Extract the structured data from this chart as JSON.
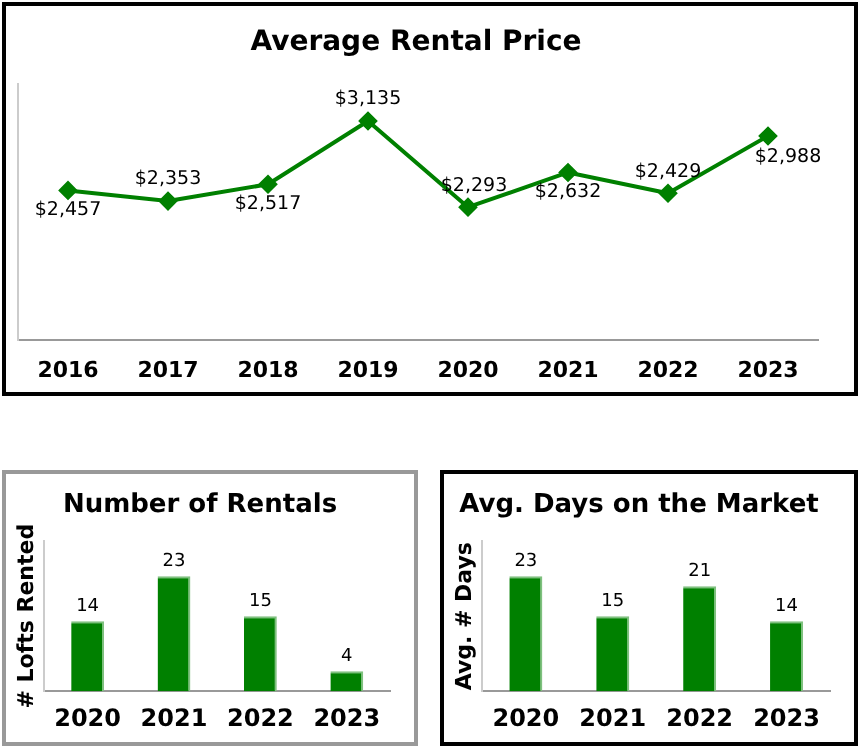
{
  "chart_data": [
    {
      "type": "line",
      "title": "Average Rental Price",
      "categories": [
        "2016",
        "2017",
        "2018",
        "2019",
        "2020",
        "2021",
        "2022",
        "2023"
      ],
      "values": [
        2457,
        2353,
        2517,
        3135,
        2293,
        2632,
        2429,
        2988
      ],
      "value_labels": [
        "$2,457",
        "$2,353",
        "$2,517",
        "$3,135",
        "$2,293",
        "$2,632",
        "$2,429",
        "$2,988"
      ],
      "color": "#008000",
      "marker": "diamond",
      "line_style": "solid",
      "ylim": [
        1000,
        3500
      ]
    },
    {
      "type": "bar",
      "title": "Number of Rentals",
      "ylabel": "# Lofts Rented",
      "categories": [
        "2020",
        "2021",
        "2022",
        "2023"
      ],
      "values": [
        14,
        23,
        15,
        4
      ],
      "color": "#008000",
      "data_labels": true,
      "ylim": [
        0,
        30
      ]
    },
    {
      "type": "bar",
      "title": "Avg. Days on the Market",
      "ylabel": "Avg. # Days",
      "categories": [
        "2020",
        "2021",
        "2022",
        "2023"
      ],
      "values": [
        23,
        15,
        21,
        14
      ],
      "color": "#008000",
      "data_labels": true,
      "ylim": [
        0,
        30
      ]
    }
  ]
}
